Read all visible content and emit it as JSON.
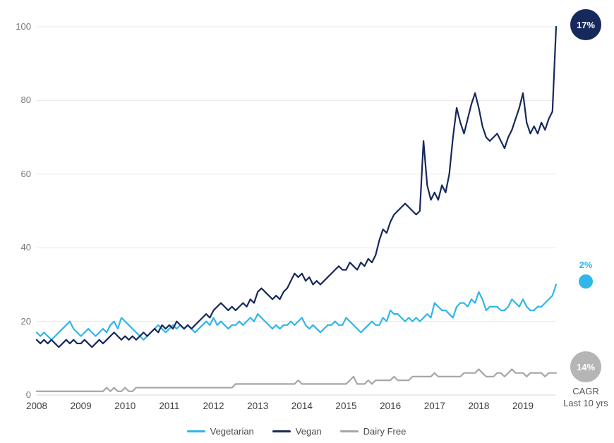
{
  "chart_data": {
    "type": "line",
    "title": "",
    "xlabel": "",
    "ylabel": "",
    "ylim": [
      0,
      100
    ],
    "y_ticks": [
      0,
      20,
      40,
      60,
      80,
      100
    ],
    "x_tick_labels": [
      "2008",
      "2009",
      "2010",
      "2011",
      "2012",
      "2013",
      "2014",
      "2015",
      "2016",
      "2017",
      "2018",
      "2019"
    ],
    "points_per_year": 12,
    "grid": "horizontal",
    "grid_color": "#E8E8E8",
    "axis_color": "#DADADA",
    "legend_position": "bottom",
    "draw_order": [
      2,
      0,
      1
    ],
    "series": [
      {
        "name": "Vegetarian",
        "color": "#2FB6EA",
        "values": [
          17,
          16,
          17,
          16,
          15,
          16,
          17,
          18,
          19,
          20,
          18,
          17,
          16,
          17,
          18,
          17,
          16,
          17,
          18,
          17,
          19,
          20,
          18,
          21,
          20,
          19,
          18,
          17,
          16,
          15,
          16,
          17,
          18,
          19,
          18,
          17,
          18,
          19,
          18,
          19,
          18,
          19,
          18,
          17,
          18,
          19,
          20,
          19,
          21,
          19,
          20,
          19,
          18,
          19,
          19,
          20,
          19,
          20,
          21,
          20,
          22,
          21,
          20,
          19,
          18,
          19,
          18,
          19,
          19,
          20,
          19,
          20,
          21,
          19,
          18,
          19,
          18,
          17,
          18,
          19,
          19,
          20,
          19,
          19,
          21,
          20,
          19,
          18,
          17,
          18,
          19,
          20,
          19,
          19,
          21,
          20,
          23,
          22,
          22,
          21,
          20,
          21,
          20,
          21,
          20,
          21,
          22,
          21,
          25,
          24,
          23,
          23,
          22,
          21,
          24,
          25,
          25,
          24,
          26,
          25,
          28,
          26,
          23,
          24,
          24,
          24,
          23,
          23,
          24,
          26,
          25,
          24,
          26,
          24,
          23,
          23,
          24,
          24,
          25,
          26,
          27,
          30
        ]
      },
      {
        "name": "Vegan",
        "color": "#16295C",
        "values": [
          15,
          14,
          15,
          14,
          15,
          14,
          13,
          14,
          15,
          14,
          15,
          14,
          14,
          15,
          14,
          13,
          14,
          15,
          14,
          15,
          16,
          17,
          16,
          15,
          16,
          15,
          16,
          15,
          16,
          17,
          16,
          17,
          18,
          17,
          19,
          18,
          19,
          18,
          20,
          19,
          18,
          19,
          18,
          19,
          20,
          21,
          22,
          21,
          23,
          24,
          25,
          24,
          23,
          24,
          23,
          24,
          25,
          24,
          26,
          25,
          28,
          29,
          28,
          27,
          26,
          27,
          26,
          28,
          29,
          31,
          33,
          32,
          33,
          31,
          32,
          30,
          31,
          30,
          31,
          32,
          33,
          34,
          35,
          34,
          34,
          36,
          35,
          34,
          36,
          35,
          37,
          36,
          38,
          42,
          45,
          44,
          47,
          49,
          50,
          51,
          52,
          51,
          50,
          49,
          50,
          69,
          57,
          53,
          55,
          53,
          57,
          55,
          60,
          70,
          78,
          74,
          71,
          75,
          79,
          82,
          78,
          73,
          70,
          69,
          70,
          71,
          69,
          67,
          70,
          72,
          75,
          78,
          82,
          74,
          71,
          73,
          71,
          74,
          72,
          75,
          77,
          100
        ]
      },
      {
        "name": "Dairy Free",
        "color": "#A6A6A6",
        "values": [
          1,
          1,
          1,
          1,
          1,
          1,
          1,
          1,
          1,
          1,
          1,
          1,
          1,
          1,
          1,
          1,
          1,
          1,
          1,
          2,
          1,
          2,
          1,
          1,
          2,
          1,
          1,
          2,
          2,
          2,
          2,
          2,
          2,
          2,
          2,
          2,
          2,
          2,
          2,
          2,
          2,
          2,
          2,
          2,
          2,
          2,
          2,
          2,
          2,
          2,
          2,
          2,
          2,
          2,
          3,
          3,
          3,
          3,
          3,
          3,
          3,
          3,
          3,
          3,
          3,
          3,
          3,
          3,
          3,
          3,
          3,
          4,
          3,
          3,
          3,
          3,
          3,
          3,
          3,
          3,
          3,
          3,
          3,
          3,
          3,
          4,
          5,
          3,
          3,
          3,
          4,
          3,
          4,
          4,
          4,
          4,
          4,
          5,
          4,
          4,
          4,
          4,
          5,
          5,
          5,
          5,
          5,
          5,
          6,
          5,
          5,
          5,
          5,
          5,
          5,
          5,
          6,
          6,
          6,
          6,
          7,
          6,
          5,
          5,
          5,
          6,
          6,
          5,
          6,
          7,
          6,
          6,
          6,
          5,
          6,
          6,
          6,
          6,
          5,
          6,
          6,
          6
        ]
      }
    ]
  },
  "badges": {
    "vegan": {
      "label": "17%",
      "color": "#16295C"
    },
    "vegetarian": {
      "label": "2%",
      "color": "#2FB6EA"
    },
    "dairy_free": {
      "label": "14%",
      "color": "#B5B5B5"
    },
    "caption_line1": "CAGR",
    "caption_line2": "Last 10 yrs"
  }
}
